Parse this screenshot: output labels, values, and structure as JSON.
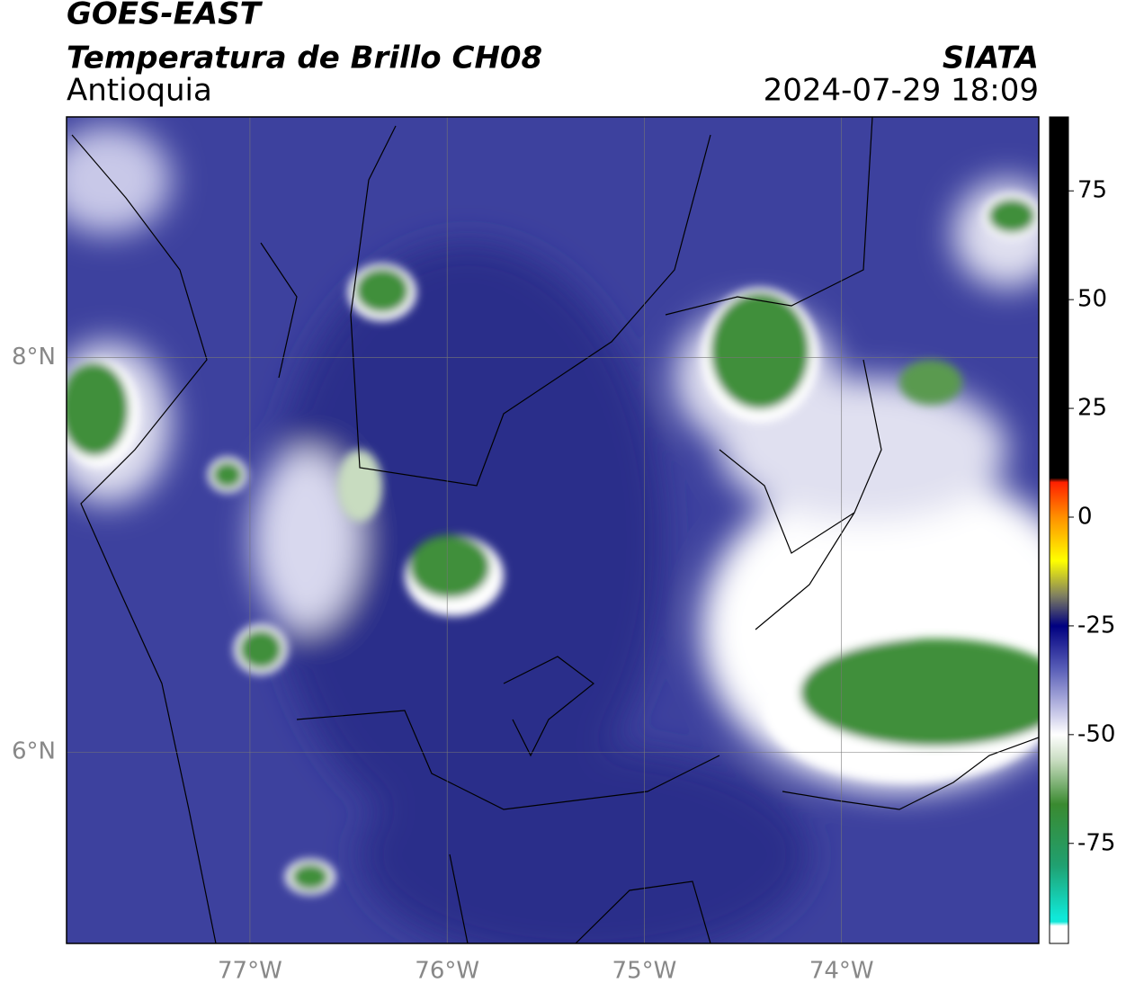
{
  "header": {
    "title": "GOES-EAST",
    "subtitle": "Temperatura de Brillo CH08",
    "region": "Antioquia",
    "source": "SIATA",
    "datetime": "2024-07-29 18:09"
  },
  "map": {
    "xlim": [
      -77.93,
      -73.0
    ],
    "ylim": [
      5.03,
      9.22
    ],
    "xticks": [
      {
        "value": -77,
        "label": "77°W"
      },
      {
        "value": -76,
        "label": "76°W"
      },
      {
        "value": -75,
        "label": "75°W"
      },
      {
        "value": -74,
        "label": "74°W"
      }
    ],
    "yticks": [
      {
        "value": 6,
        "label": "6°N"
      },
      {
        "value": 8,
        "label": "8°N"
      }
    ],
    "grid": true
  },
  "colorbar": {
    "lim": [
      -98,
      92
    ],
    "ticks": [
      75,
      50,
      25,
      0,
      -25,
      -50,
      -75
    ],
    "stops": [
      [
        92,
        "#000000"
      ],
      [
        9,
        "#000000"
      ],
      [
        8,
        "#ff2000"
      ],
      [
        0,
        "#ff9000"
      ],
      [
        -10,
        "#ffff00"
      ],
      [
        -18,
        "#808060"
      ],
      [
        -25,
        "#000080"
      ],
      [
        -35,
        "#5a5fb8"
      ],
      [
        -45,
        "#c8c8e8"
      ],
      [
        -50,
        "#ffffff"
      ],
      [
        -56,
        "#c8dcc0"
      ],
      [
        -66,
        "#3a8a30"
      ],
      [
        -80,
        "#20a070"
      ],
      [
        -92,
        "#10e8d8"
      ],
      [
        -93,
        "#10e8d8"
      ],
      [
        -94,
        "#ffffff"
      ],
      [
        -98,
        "#ffffff"
      ]
    ]
  }
}
